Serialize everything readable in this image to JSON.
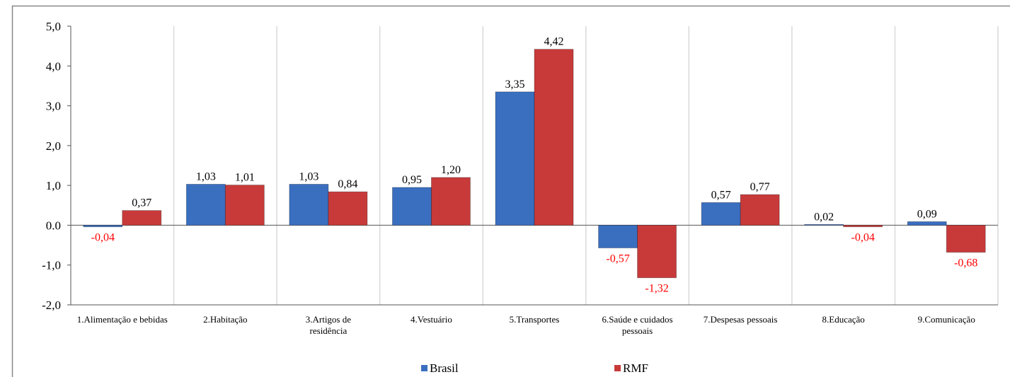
{
  "chart_data": {
    "type": "bar",
    "categories": [
      "1.Alimentação e bebidas",
      "2.Habitação",
      "3.Artigos de residência",
      "4.Vestuário",
      "5.Transportes",
      "6.Saúde e cuidados pessoais",
      "7.Despesas pessoais",
      "8.Educação",
      "9.Comunicação"
    ],
    "series": [
      {
        "name": "Brasil",
        "color": "#3a6fc0",
        "values": [
          -0.04,
          1.03,
          1.03,
          0.95,
          3.35,
          -0.57,
          0.57,
          0.02,
          0.09
        ],
        "value_labels": [
          "-0,04",
          "1,03",
          "1,03",
          "0,95",
          "3,35",
          "-0,57",
          "0,57",
          "0,02",
          "0,09"
        ]
      },
      {
        "name": "RMF",
        "color": "#c83a3a",
        "values": [
          0.37,
          1.01,
          0.84,
          1.2,
          4.42,
          -1.32,
          0.77,
          -0.04,
          -0.68
        ],
        "value_labels": [
          "0,37",
          "1,01",
          "0,84",
          "1,20",
          "4,42",
          "-1,32",
          "0,77",
          "-0,04",
          "-0,68"
        ]
      }
    ],
    "ylim": [
      -2,
      5
    ],
    "yticks": [
      {
        "value": -2,
        "label": "-2,0"
      },
      {
        "value": -1,
        "label": "-1,0"
      },
      {
        "value": 0,
        "label": "0.0"
      },
      {
        "value": 1,
        "label": "1,0"
      },
      {
        "value": 2,
        "label": "2,0"
      },
      {
        "value": 3,
        "label": "3,0"
      },
      {
        "value": 4,
        "label": "4,0"
      },
      {
        "value": 5,
        "label": "5,0"
      }
    ],
    "negative_label_color": "#ff0000",
    "legend": "bottom"
  }
}
